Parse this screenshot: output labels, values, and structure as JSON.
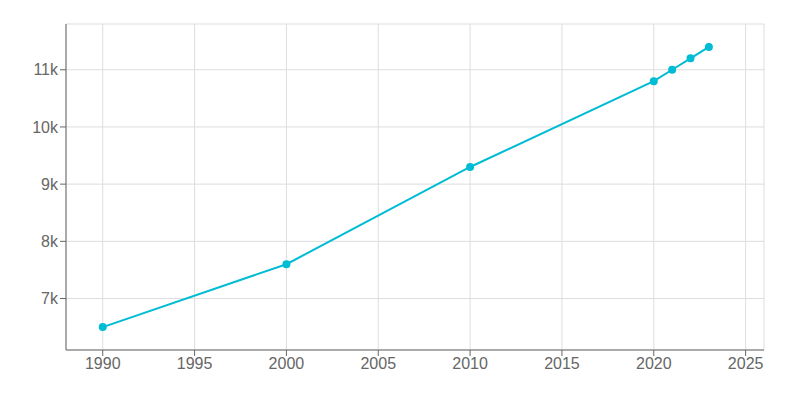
{
  "chart_data": {
    "type": "line",
    "x": [
      1990,
      2000,
      2010,
      2020,
      2021,
      2022,
      2023
    ],
    "values": [
      6500,
      7600,
      9300,
      10800,
      11000,
      11200,
      11400
    ],
    "color": "#00bcd4",
    "marker": "circle",
    "xlim": [
      1988,
      2026
    ],
    "ylim": [
      6100,
      11800
    ],
    "xticks": [
      1990,
      1995,
      2000,
      2005,
      2010,
      2015,
      2020,
      2025
    ],
    "yticks": [
      {
        "value": 7000,
        "label": "7k"
      },
      {
        "value": 8000,
        "label": "8k"
      },
      {
        "value": 9000,
        "label": "9k"
      },
      {
        "value": 10000,
        "label": "10k"
      },
      {
        "value": 11000,
        "label": "11k"
      }
    ],
    "grid": true
  }
}
